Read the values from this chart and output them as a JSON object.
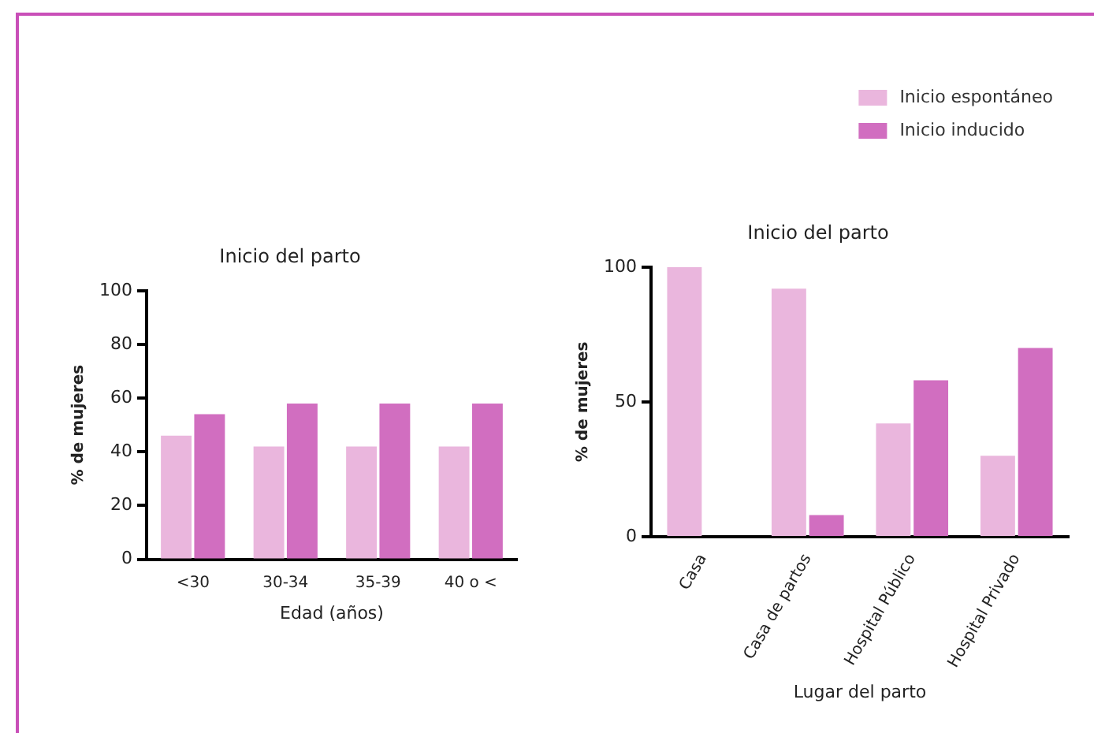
{
  "chart_data": [
    {
      "type": "bar",
      "title": "Inicio del parto",
      "xlabel": "Edad (años)",
      "ylabel": "% de mujeres",
      "categories": [
        "<30",
        "30-34",
        "35-39",
        "40 o <"
      ],
      "ylim": [
        0,
        100
      ],
      "yticks": [
        0,
        20,
        40,
        60,
        80,
        100
      ],
      "grid": false,
      "legend": false,
      "series": [
        {
          "color": "#eab6dd",
          "values": [
            46,
            42,
            42,
            42
          ]
        },
        {
          "color": "#d16ec0",
          "values": [
            54,
            58,
            58,
            58
          ]
        }
      ]
    },
    {
      "type": "bar",
      "title": "Inicio del parto",
      "xlabel": "Lugar del parto",
      "ylabel": "% de mujeres",
      "categories": [
        "Casa",
        "Casa de partos",
        "Hospital Público",
        "Hospital Privado"
      ],
      "ylim": [
        0,
        100
      ],
      "yticks": [
        0,
        50,
        100
      ],
      "grid": false,
      "legend": "top right",
      "series": [
        {
          "name": "Inicio espontáneo",
          "color": "#eab6dd",
          "values": [
            100,
            92,
            42,
            30
          ]
        },
        {
          "name": "Inicio inducido",
          "color": "#d16ec0",
          "values": [
            0,
            8,
            58,
            70
          ]
        }
      ]
    }
  ]
}
